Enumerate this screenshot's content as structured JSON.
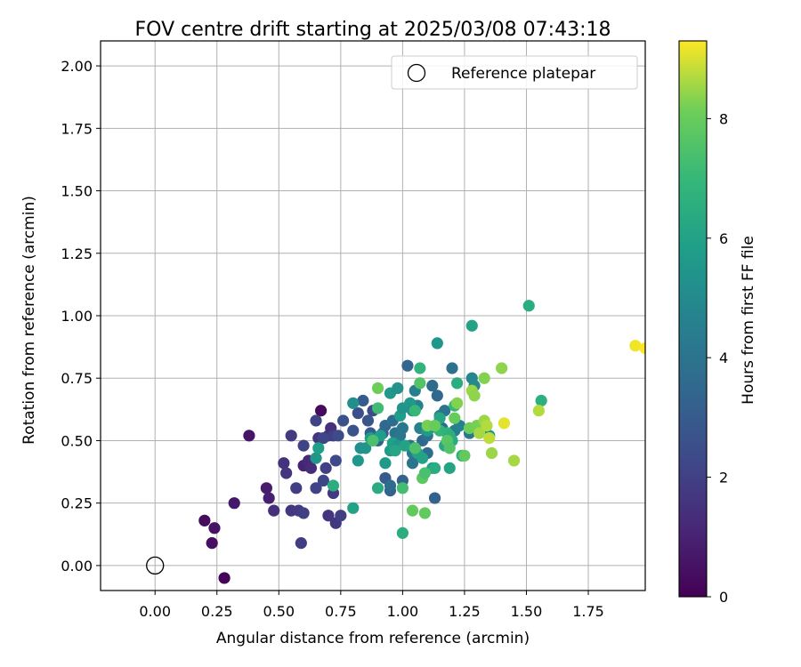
{
  "chart_data": {
    "type": "scatter",
    "title": "FOV centre drift starting at 2025/03/08 07:43:18",
    "xlabel": "Angular distance from reference (arcmin)",
    "ylabel": "Rotation from reference (arcmin)",
    "xlim": [
      -0.22,
      1.98
    ],
    "ylim": [
      -0.1,
      2.1
    ],
    "xticks": [
      "0.00",
      "0.25",
      "0.50",
      "0.75",
      "1.00",
      "1.25",
      "1.50",
      "1.75"
    ],
    "yticks": [
      "0.00",
      "0.25",
      "0.50",
      "0.75",
      "1.00",
      "1.25",
      "1.50",
      "1.75",
      "2.00"
    ],
    "grid": true,
    "legend": {
      "position": "top-right",
      "label": "Reference platepar"
    },
    "reference_point": [
      0,
      0
    ],
    "colorbar": {
      "label": "Hours from first FF file",
      "range": [
        0,
        9.3
      ],
      "ticks": [
        "0",
        "2",
        "4",
        "6",
        "8"
      ],
      "colormap": "viridis"
    },
    "points": [
      [
        0.28,
        -0.05,
        0.1
      ],
      [
        0.2,
        0.18,
        0.3
      ],
      [
        0.23,
        0.09,
        0.4
      ],
      [
        0.24,
        0.15,
        0.5
      ],
      [
        0.32,
        0.25,
        0.7
      ],
      [
        0.38,
        0.52,
        0.6
      ],
      [
        0.45,
        0.31,
        0.8
      ],
      [
        0.46,
        0.27,
        0.9
      ],
      [
        0.67,
        0.62,
        0.3
      ],
      [
        0.6,
        0.4,
        1.0
      ],
      [
        0.62,
        0.42,
        1.2
      ],
      [
        0.63,
        0.39,
        1.3
      ],
      [
        0.48,
        0.22,
        1.4
      ],
      [
        0.52,
        0.41,
        1.5
      ],
      [
        0.53,
        0.37,
        1.6
      ],
      [
        0.55,
        0.22,
        1.7
      ],
      [
        0.58,
        0.22,
        1.8
      ],
      [
        0.59,
        0.09,
        1.9
      ],
      [
        0.6,
        0.21,
        2.0
      ],
      [
        0.57,
        0.31,
        1.9
      ],
      [
        0.55,
        0.52,
        1.8
      ],
      [
        0.6,
        0.48,
        2.1
      ],
      [
        0.65,
        0.31,
        2.1
      ],
      [
        0.66,
        0.51,
        1.6
      ],
      [
        0.7,
        0.52,
        1.5
      ],
      [
        0.71,
        0.55,
        1.4
      ],
      [
        0.72,
        0.52,
        2.0
      ],
      [
        0.7,
        0.2,
        1.6
      ],
      [
        0.72,
        0.29,
        1.8
      ],
      [
        0.73,
        0.17,
        1.7
      ],
      [
        0.75,
        0.2,
        1.9
      ],
      [
        0.73,
        0.42,
        2.3
      ],
      [
        0.68,
        0.34,
        2.2
      ],
      [
        0.69,
        0.39,
        2.0
      ],
      [
        0.74,
        0.52,
        2.4
      ],
      [
        0.76,
        0.58,
        2.6
      ],
      [
        0.65,
        0.58,
        2.1
      ],
      [
        0.68,
        0.51,
        2.2
      ],
      [
        0.82,
        0.61,
        2.5
      ],
      [
        0.84,
        0.66,
        3.0
      ],
      [
        0.86,
        0.58,
        2.8
      ],
      [
        0.87,
        0.53,
        3.1
      ],
      [
        0.8,
        0.54,
        2.7
      ],
      [
        0.88,
        0.62,
        2.4
      ],
      [
        0.9,
        0.5,
        3.2
      ],
      [
        0.92,
        0.53,
        3.3
      ],
      [
        0.93,
        0.56,
        3.5
      ],
      [
        0.93,
        0.35,
        3.0
      ],
      [
        0.95,
        0.3,
        3.2
      ],
      [
        0.95,
        0.32,
        3.6
      ],
      [
        0.96,
        0.58,
        3.7
      ],
      [
        0.97,
        0.53,
        3.9
      ],
      [
        0.98,
        0.5,
        4.0
      ],
      [
        0.99,
        0.52,
        4.1
      ],
      [
        1.0,
        0.55,
        4.2
      ],
      [
        1.0,
        0.34,
        3.3
      ],
      [
        1.02,
        0.8,
        3.4
      ],
      [
        1.03,
        0.48,
        3.8
      ],
      [
        1.04,
        0.45,
        4.3
      ],
      [
        1.04,
        0.41,
        4.0
      ],
      [
        1.05,
        0.7,
        4.5
      ],
      [
        1.06,
        0.64,
        4.6
      ],
      [
        1.07,
        0.55,
        4.7
      ],
      [
        1.08,
        0.5,
        3.5
      ],
      [
        1.1,
        0.45,
        3.7
      ],
      [
        1.1,
        0.52,
        3.9
      ],
      [
        1.11,
        0.55,
        4.1
      ],
      [
        1.12,
        0.72,
        3.6
      ],
      [
        1.13,
        0.27,
        3.3
      ],
      [
        1.14,
        0.68,
        3.5
      ],
      [
        1.15,
        0.6,
        4.8
      ],
      [
        1.16,
        0.55,
        3.7
      ],
      [
        1.17,
        0.62,
        4.0
      ],
      [
        1.2,
        0.79,
        3.9
      ],
      [
        1.21,
        0.54,
        4.4
      ],
      [
        1.23,
        0.56,
        4.6
      ],
      [
        1.27,
        0.53,
        4.2
      ],
      [
        1.28,
        0.75,
        4.8
      ],
      [
        1.29,
        0.72,
        5.0
      ],
      [
        1.33,
        0.55,
        4.9
      ],
      [
        1.35,
        0.52,
        5.3
      ],
      [
        0.82,
        0.42,
        5.5
      ],
      [
        0.83,
        0.47,
        5.2
      ],
      [
        0.85,
        0.47,
        5.4
      ],
      [
        0.87,
        0.51,
        5.7
      ],
      [
        0.91,
        0.52,
        5.8
      ],
      [
        0.93,
        0.41,
        5.6
      ],
      [
        0.95,
        0.46,
        5.7
      ],
      [
        0.96,
        0.49,
        5.9
      ],
      [
        0.98,
        0.48,
        5.5
      ],
      [
        0.99,
        0.6,
        5.8
      ],
      [
        1.0,
        0.63,
        5.4
      ],
      [
        1.01,
        0.48,
        6.0
      ],
      [
        1.03,
        0.65,
        5.6
      ],
      [
        1.05,
        0.47,
        5.9
      ],
      [
        1.06,
        0.45,
        6.1
      ],
      [
        1.08,
        0.43,
        6.0
      ],
      [
        1.1,
        0.54,
        5.7
      ],
      [
        1.12,
        0.39,
        5.9
      ],
      [
        1.14,
        0.89,
        5.5
      ],
      [
        1.15,
        0.59,
        6.2
      ],
      [
        1.17,
        0.48,
        6.3
      ],
      [
        1.19,
        0.39,
        6.1
      ],
      [
        1.2,
        0.5,
        6.4
      ],
      [
        1.22,
        0.73,
        6.5
      ],
      [
        1.24,
        0.44,
        6.6
      ],
      [
        1.28,
        0.96,
        6.0
      ],
      [
        0.65,
        0.43,
        5.5
      ],
      [
        0.66,
        0.47,
        5.8
      ],
      [
        0.72,
        0.32,
        6.5
      ],
      [
        0.8,
        0.23,
        6.0
      ],
      [
        0.8,
        0.65,
        5.2
      ],
      [
        0.9,
        0.31,
        6.4
      ],
      [
        0.95,
        0.69,
        5.6
      ],
      [
        0.97,
        0.46,
        6.2
      ],
      [
        0.98,
        0.71,
        5.3
      ],
      [
        1.0,
        0.13,
        6.5
      ],
      [
        1.04,
        0.62,
        5.3
      ],
      [
        1.07,
        0.79,
        6.8
      ],
      [
        1.13,
        0.39,
        6.4
      ],
      [
        1.15,
        0.54,
        6.9
      ],
      [
        1.18,
        0.53,
        6.8
      ],
      [
        1.19,
        0.52,
        6.6
      ],
      [
        1.21,
        0.64,
        7.0
      ],
      [
        1.51,
        1.04,
        6.5
      ],
      [
        1.56,
        0.66,
        6.6
      ],
      [
        0.9,
        0.71,
        8.1
      ],
      [
        1.04,
        0.22,
        7.9
      ],
      [
        1.05,
        0.47,
        7.5
      ],
      [
        1.07,
        0.73,
        7.6
      ],
      [
        1.08,
        0.35,
        7.8
      ],
      [
        1.09,
        0.21,
        7.9
      ],
      [
        1.09,
        0.37,
        7.4
      ],
      [
        1.1,
        0.56,
        8.2
      ],
      [
        1.13,
        0.56,
        8.0
      ],
      [
        1.18,
        0.5,
        7.7
      ],
      [
        1.19,
        0.47,
        7.6
      ],
      [
        1.21,
        0.59,
        8.0
      ],
      [
        1.22,
        0.65,
        8.3
      ],
      [
        1.25,
        0.44,
        7.9
      ],
      [
        1.27,
        0.55,
        8.1
      ],
      [
        1.28,
        0.7,
        8.5
      ],
      [
        1.29,
        0.68,
        8.4
      ],
      [
        1.3,
        0.56,
        8.2
      ],
      [
        1.31,
        0.53,
        8.6
      ],
      [
        1.33,
        0.58,
        8.5
      ],
      [
        1.33,
        0.75,
        8.3
      ],
      [
        1.34,
        0.56,
        8.7
      ],
      [
        1.35,
        0.51,
        8.8
      ],
      [
        1.36,
        0.45,
        8.5
      ],
      [
        1.4,
        0.79,
        8.4
      ],
      [
        1.41,
        0.57,
        9.1
      ],
      [
        1.45,
        0.42,
        8.6
      ],
      [
        1.55,
        0.62,
        8.7
      ],
      [
        1.94,
        0.88,
        9.2
      ],
      [
        1.98,
        0.87,
        9.3
      ],
      [
        0.9,
        0.63,
        7.2
      ],
      [
        1.05,
        0.62,
        7.0
      ],
      [
        0.88,
        0.5,
        7.4
      ],
      [
        1.0,
        0.31,
        7.3
      ]
    ]
  }
}
